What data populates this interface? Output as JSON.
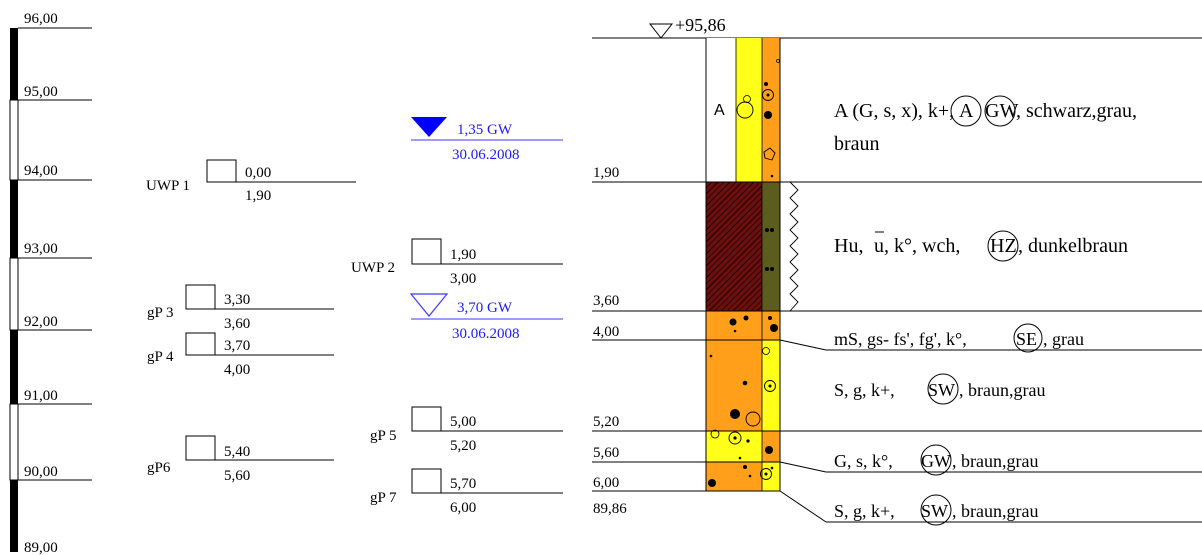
{
  "scale": {
    "labels": [
      "96,00",
      "95,00",
      "94,00",
      "93,00",
      "92,00",
      "91,00",
      "90,00",
      "89,00"
    ]
  },
  "samples_left": [
    {
      "name": "UWP 1",
      "top": "0,00",
      "bottom": "1,90"
    },
    {
      "name": "gP 3",
      "top": "3,30",
      "bottom": "3,60"
    },
    {
      "name": "gP 4",
      "top": "3,70",
      "bottom": "4,00"
    },
    {
      "name": "gP6",
      "top": "5,40",
      "bottom": "5,60"
    }
  ],
  "samples_mid": [
    {
      "name": "UWP 2",
      "top": "1,90",
      "bottom": "3,00"
    },
    {
      "name": "gP 5",
      "top": "5,00",
      "bottom": "5,20"
    },
    {
      "name": "gP 7",
      "top": "5,70",
      "bottom": "6,00"
    }
  ],
  "groundwater": [
    {
      "value": "1,35 GW",
      "date": "30.06.2008",
      "color": "#0000ff"
    },
    {
      "value": "3,70 GW",
      "date": "30.06.2008",
      "color": "#3b3bff"
    }
  ],
  "profile": {
    "top_elevation": "+95,86",
    "depths": [
      "1,90",
      "3,60",
      "4,00",
      "5,20",
      "5,60",
      "6,00"
    ],
    "bottom_elevation": "89,86",
    "fill_label": "A",
    "colors": {
      "yellow": "#ffff1a",
      "orange": "#ff9f1a",
      "darkred": "#6b0f0f",
      "olive": "#5c5c1e"
    }
  },
  "layers": [
    {
      "pre": "A (G, s, x), k+,",
      "c1": "A",
      "c2": "GW",
      "post": ", schwarz,grau,",
      "line2": "braun"
    },
    {
      "pre": "Hu, ",
      "u": "u",
      "mid": ", k°, wch,",
      "c1": "HZ",
      "post": ", dunkelbraun"
    },
    {
      "pre": "mS, gs- fs', fg', k°,",
      "c1": "SE",
      "post": ", grau"
    },
    {
      "pre": "S, g, k+,",
      "c1": "SW",
      "post": ", braun,grau"
    },
    {
      "pre": "G, s, k°,",
      "c1": "GW",
      "post": ", braun,grau"
    },
    {
      "pre": "S, g, k+,",
      "c1": "SW",
      "post": ", braun,grau"
    }
  ]
}
